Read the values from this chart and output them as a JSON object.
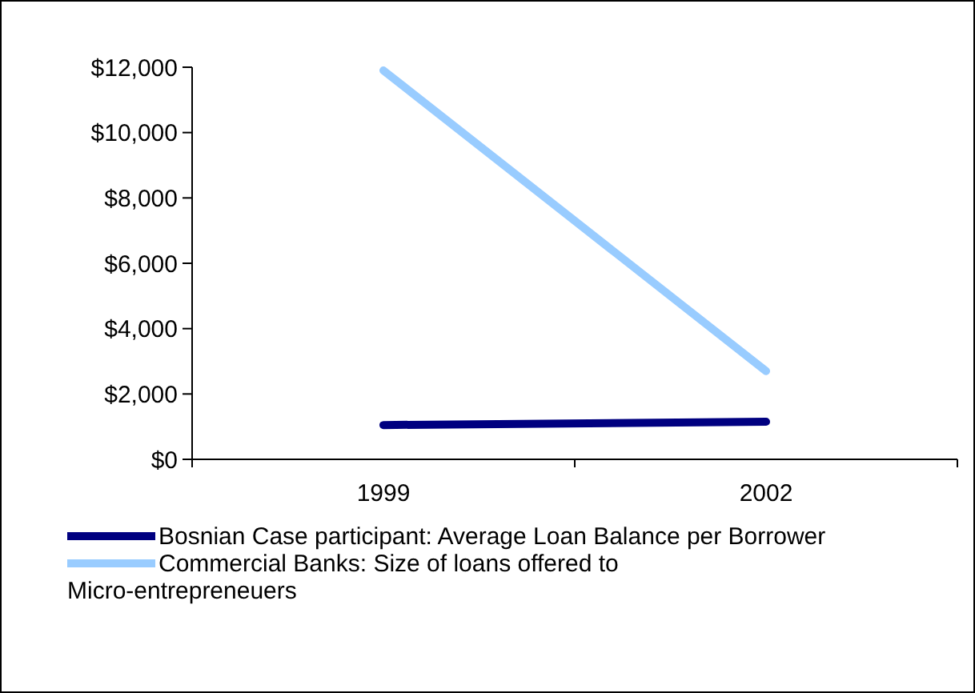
{
  "chart_data": {
    "type": "line",
    "categories": [
      "1999",
      "2002"
    ],
    "series": [
      {
        "name": "Bosnian Case participant: Average Loan Balance per Borrower",
        "color": "#000080",
        "values": [
          1050,
          1150
        ]
      },
      {
        "name": "Commercial Banks: Size of loans offered to Micro-entrepreneuers",
        "color": "#99ccff",
        "values": [
          11900,
          2700
        ]
      }
    ],
    "ylim": [
      0,
      12000
    ],
    "yticks": [
      {
        "value": 0,
        "label": "$0"
      },
      {
        "value": 2000,
        "label": "$2,000"
      },
      {
        "value": 4000,
        "label": "$4,000"
      },
      {
        "value": 6000,
        "label": "$6,000"
      },
      {
        "value": 8000,
        "label": "$8,000"
      },
      {
        "value": 10000,
        "label": "$10,000"
      },
      {
        "value": 12000,
        "label": "$12,000"
      }
    ],
    "legend": "bottom",
    "marker": "none",
    "line_style": "solid",
    "grid": false
  }
}
